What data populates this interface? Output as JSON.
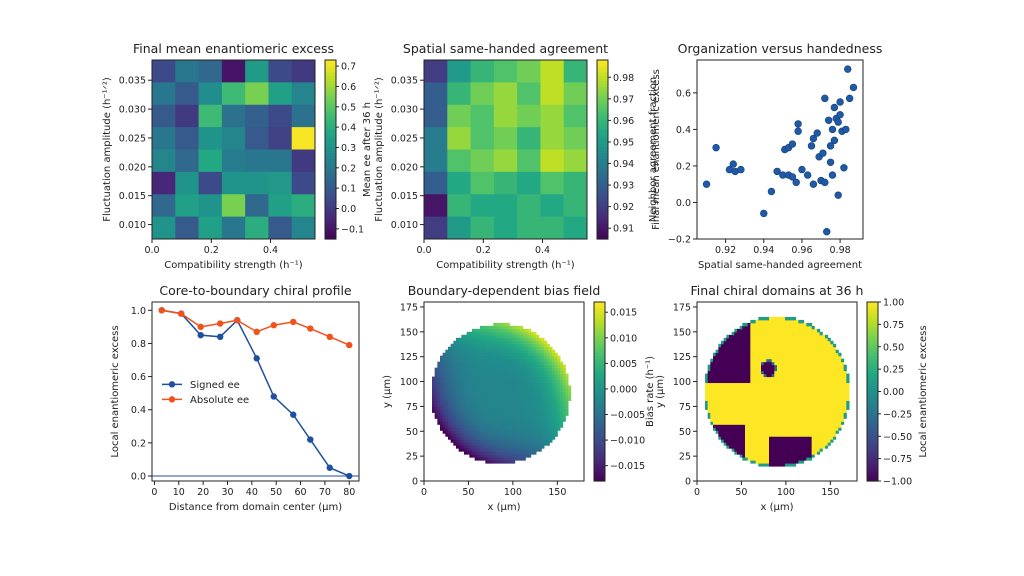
{
  "chart_data": [
    {
      "type": "heatmap",
      "title": "Final mean enantiomeric excess",
      "xlabel": "Compatibility strength (h⁻¹)",
      "ylabel": "Fluctuation amplitude (h⁻¹ᐟ²)",
      "xlim": [
        0.0,
        0.55
      ],
      "ylim": [
        0.0075,
        0.0385
      ],
      "xticks": [
        "0.0",
        "0.2",
        "0.4"
      ],
      "yticks": [
        "0.010",
        "0.015",
        "0.020",
        "0.025",
        "0.030",
        "0.035"
      ],
      "colorbar": {
        "label": "",
        "range": [
          -0.15,
          0.73
        ],
        "ticks": [
          "−0.1",
          "0.0",
          "0.1",
          "0.2",
          "0.3",
          "0.4",
          "0.5",
          "0.6",
          "0.7"
        ]
      },
      "grid": [
        [
          0.05,
          0.2,
          0.15,
          -0.1,
          0.33,
          0.05,
          0.0
        ],
        [
          0.2,
          0.1,
          0.28,
          0.45,
          0.55,
          0.35,
          0.25
        ],
        [
          0.1,
          0.0,
          0.45,
          0.18,
          0.12,
          0.05,
          0.18
        ],
        [
          0.2,
          0.1,
          0.3,
          0.25,
          0.1,
          0.02,
          0.72
        ],
        [
          0.25,
          0.15,
          0.38,
          0.22,
          0.2,
          0.2,
          0.0
        ],
        [
          -0.05,
          0.3,
          0.05,
          0.3,
          0.3,
          0.32,
          0.05
        ],
        [
          0.15,
          0.35,
          0.3,
          0.55,
          0.15,
          0.35,
          0.4
        ],
        [
          0.3,
          0.1,
          0.35,
          0.2,
          0.4,
          0.1,
          0.25
        ]
      ]
    },
    {
      "type": "heatmap",
      "title": "Spatial same-handed agreement",
      "xlabel": "Compatibility strength (h⁻¹)",
      "ylabel": "Mean ee after 36 h\nFluctuation amplitude (h⁻¹ᐟ²)",
      "xlim": [
        0.0,
        0.55
      ],
      "ylim": [
        0.0075,
        0.0385
      ],
      "xticks": [
        "0.0",
        "0.2",
        "0.4"
      ],
      "yticks": [
        "0.010",
        "0.015",
        "0.020",
        "0.025",
        "0.030",
        "0.035"
      ],
      "colorbar": {
        "label": "Neighbor agreement fraction",
        "range": [
          0.905,
          0.988
        ],
        "ticks": [
          "0.91",
          "0.92",
          "0.93",
          "0.94",
          "0.95",
          "0.96",
          "0.97",
          "0.98"
        ]
      },
      "grid": [
        [
          0.92,
          0.95,
          0.96,
          0.965,
          0.97,
          0.98,
          0.96
        ],
        [
          0.93,
          0.96,
          0.97,
          0.975,
          0.965,
          0.98,
          0.97
        ],
        [
          0.93,
          0.97,
          0.965,
          0.975,
          0.97,
          0.975,
          0.965
        ],
        [
          0.94,
          0.975,
          0.965,
          0.97,
          0.96,
          0.975,
          0.97
        ],
        [
          0.94,
          0.965,
          0.97,
          0.975,
          0.965,
          0.98,
          0.975
        ],
        [
          0.93,
          0.955,
          0.965,
          0.96,
          0.955,
          0.965,
          0.96
        ],
        [
          0.91,
          0.96,
          0.955,
          0.955,
          0.96,
          0.955,
          0.96
        ],
        [
          0.92,
          0.95,
          0.96,
          0.955,
          0.96,
          0.96,
          0.955
        ]
      ]
    },
    {
      "type": "scatter",
      "title": "Organization versus handedness",
      "xlabel": "Spatial same-handed agreement",
      "ylabel": "Final mean enantiomeric excess",
      "xlim": [
        0.905,
        0.992
      ],
      "ylim": [
        -0.2,
        0.78
      ],
      "xticks": [
        "0.92",
        "0.94",
        "0.96",
        "0.98"
      ],
      "yticks": [
        "−0.2",
        "0.0",
        "0.2",
        "0.4",
        "0.6"
      ],
      "color": "#1f5aa6",
      "x": [
        0.91,
        0.915,
        0.922,
        0.924,
        0.925,
        0.928,
        0.94,
        0.944,
        0.947,
        0.95,
        0.951,
        0.953,
        0.953,
        0.955,
        0.955,
        0.957,
        0.958,
        0.958,
        0.96,
        0.963,
        0.965,
        0.966,
        0.966,
        0.968,
        0.969,
        0.97,
        0.971,
        0.972,
        0.972,
        0.973,
        0.974,
        0.975,
        0.975,
        0.976,
        0.976,
        0.977,
        0.977,
        0.978,
        0.979,
        0.979,
        0.98,
        0.98,
        0.981,
        0.982,
        0.983,
        0.984,
        0.985,
        0.987
      ],
      "y": [
        0.1,
        0.3,
        0.18,
        0.21,
        0.17,
        0.18,
        -0.06,
        0.06,
        0.17,
        0.15,
        0.29,
        0.3,
        0.15,
        0.14,
        0.32,
        0.11,
        0.39,
        0.43,
        0.18,
        0.15,
        0.31,
        0.1,
        0.35,
        0.38,
        0.25,
        0.12,
        0.27,
        0.57,
        0.11,
        -0.16,
        0.45,
        0.22,
        0.31,
        0.15,
        0.4,
        0.34,
        0.52,
        0.46,
        0.04,
        0.44,
        0.55,
        0.48,
        0.39,
        0.19,
        0.4,
        0.73,
        0.57,
        0.63
      ]
    },
    {
      "type": "line",
      "title": "Core-to-boundary chiral profile",
      "xlabel": "Distance from domain center (μm)",
      "ylabel": "Local enantiomeric excess",
      "xlim": [
        -1,
        84
      ],
      "ylim": [
        -0.03,
        1.05
      ],
      "xticks": [
        "0",
        "10",
        "20",
        "30",
        "40",
        "50",
        "60",
        "70",
        "80"
      ],
      "yticks": [
        "0.0",
        "0.2",
        "0.4",
        "0.6",
        "0.8",
        "1.0"
      ],
      "x": [
        3,
        11,
        19,
        27,
        34,
        42,
        49,
        57,
        64,
        72,
        80
      ],
      "legend_position": "center-left",
      "series": [
        {
          "name": "Signed ee",
          "color": "#1f4fa0",
          "values": [
            1.0,
            0.98,
            0.85,
            0.84,
            0.94,
            0.71,
            0.48,
            0.37,
            0.22,
            0.05,
            0.0
          ]
        },
        {
          "name": "Absolute ee",
          "color": "#f0521a",
          "values": [
            1.0,
            0.98,
            0.9,
            0.92,
            0.94,
            0.87,
            0.91,
            0.93,
            0.89,
            0.84,
            0.79
          ]
        }
      ]
    },
    {
      "type": "heatmap",
      "title": "Boundary-dependent bias field",
      "xlabel": "x (μm)",
      "ylabel": "y (μm)",
      "xlim": [
        0,
        180
      ],
      "ylim": [
        0,
        180
      ],
      "xticks": [
        "0",
        "50",
        "100",
        "150"
      ],
      "yticks": [
        "0",
        "25",
        "50",
        "75",
        "100",
        "125",
        "150",
        "175"
      ],
      "colorbar": {
        "label": "Bias rate (h⁻¹)",
        "range": [
          -0.018,
          0.017
        ],
        "ticks": [
          "−0.015",
          "−0.010",
          "−0.005",
          "0.000",
          "0.005",
          "0.010",
          "0.015"
        ]
      }
    },
    {
      "type": "heatmap",
      "title": "Final chiral domains at 36 h",
      "xlabel": "x (μm)",
      "ylabel": "y (μm)",
      "xlim": [
        0,
        180
      ],
      "ylim": [
        0,
        180
      ],
      "xticks": [
        "0",
        "50",
        "100",
        "150"
      ],
      "yticks": [
        "0",
        "25",
        "50",
        "75",
        "100",
        "125",
        "150",
        "175"
      ],
      "colorbar": {
        "label": "Local enantiomeric excess",
        "range": [
          -1.0,
          1.0
        ],
        "ticks": [
          "−1.00",
          "−0.75",
          "−0.50",
          "−0.25",
          "0.00",
          "0.25",
          "0.50",
          "0.75",
          "1.00"
        ]
      }
    }
  ]
}
